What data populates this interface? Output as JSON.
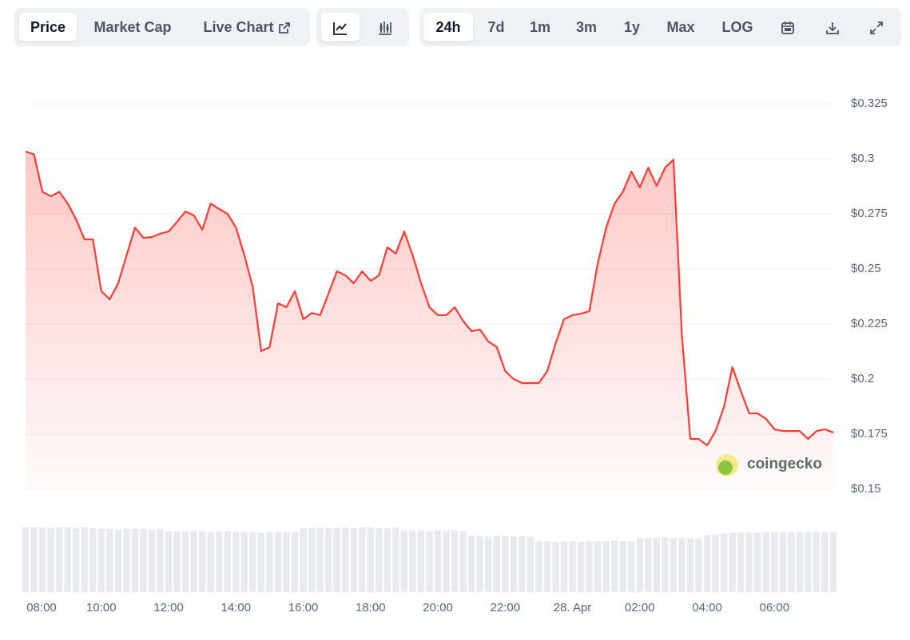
{
  "toolbar": {
    "view_tabs": [
      "Price",
      "Market Cap",
      "Live Chart"
    ],
    "range_tabs": [
      "24h",
      "7d",
      "1m",
      "3m",
      "1y",
      "Max",
      "LOG"
    ]
  },
  "chart_data": {
    "type": "line",
    "color": "#ff3a33",
    "watermark": "coingecko",
    "categories": [
      null,
      "08:00",
      null,
      null,
      null,
      null,
      null,
      null,
      null,
      "10:00",
      null,
      null,
      null,
      null,
      null,
      null,
      null,
      "12:00",
      null,
      null,
      null,
      null,
      null,
      null,
      null,
      "14:00",
      null,
      null,
      null,
      null,
      null,
      null,
      null,
      "16:00",
      null,
      null,
      null,
      null,
      null,
      null,
      null,
      "18:00",
      null,
      null,
      null,
      null,
      null,
      null,
      null,
      "20:00",
      null,
      null,
      null,
      null,
      null,
      null,
      null,
      "22:00",
      null,
      null,
      null,
      null,
      null,
      null,
      null,
      "28. Apr",
      null,
      null,
      null,
      null,
      null,
      null,
      null,
      "02:00",
      null,
      null,
      null,
      null,
      null,
      null,
      null,
      "04:00",
      null,
      null,
      null,
      null,
      null,
      null,
      null,
      "06:00",
      null,
      null,
      null,
      null,
      null,
      null,
      null
    ],
    "values": [
      0.3033,
      0.302,
      0.285,
      0.283,
      0.285,
      0.2797,
      0.2725,
      0.2634,
      0.2634,
      0.2399,
      0.2362,
      0.2435,
      0.2562,
      0.2688,
      0.2641,
      0.2645,
      0.266,
      0.267,
      0.2714,
      0.2761,
      0.2743,
      0.2678,
      0.2797,
      0.2772,
      0.275,
      0.2688,
      0.2562,
      0.2417,
      0.2127,
      0.2145,
      0.2344,
      0.2326,
      0.2399,
      0.2272,
      0.23,
      0.229,
      0.2388,
      0.2489,
      0.2471,
      0.2435,
      0.2489,
      0.2446,
      0.2471,
      0.2598,
      0.257,
      0.267,
      0.2562,
      0.2435,
      0.2326,
      0.229,
      0.229,
      0.2326,
      0.2264,
      0.2217,
      0.2225,
      0.217,
      0.2145,
      0.2036,
      0.2,
      0.1982,
      0.1982,
      0.1982,
      0.2036,
      0.2163,
      0.2272,
      0.229,
      0.2297,
      0.2308,
      0.2525,
      0.2688,
      0.2797,
      0.2851,
      0.2942,
      0.287,
      0.296,
      0.2877,
      0.296,
      0.2996,
      0.2199,
      0.1728,
      0.1728,
      0.1699,
      0.1764,
      0.1873,
      0.2054,
      0.1946,
      0.1844,
      0.1844,
      0.1819,
      0.1772,
      0.1764,
      0.1764,
      0.1764,
      0.1728,
      0.1764,
      0.1772,
      0.1757
    ],
    "volume": [
      84,
      84,
      84,
      83,
      84,
      84,
      83,
      84,
      83,
      82,
      82,
      81,
      82,
      82,
      82,
      81,
      82,
      79,
      79,
      78,
      79,
      79,
      78,
      79,
      79,
      78,
      78,
      78,
      77,
      78,
      78,
      78,
      78,
      83,
      83,
      84,
      83,
      83,
      84,
      83,
      84,
      84,
      83,
      83,
      84,
      80,
      80,
      80,
      79,
      80,
      80,
      80,
      79,
      73,
      73,
      72,
      73,
      73,
      72,
      73,
      72,
      66,
      66,
      65,
      66,
      66,
      65,
      66,
      66,
      66,
      67,
      66,
      66,
      70,
      70,
      70,
      71,
      70,
      70,
      70,
      70,
      74,
      74,
      76,
      77,
      77,
      77,
      77,
      78,
      78,
      78,
      78,
      78,
      78,
      78,
      78,
      78
    ],
    "volume_ylim": [
      0,
      88
    ],
    "ylim": [
      0.15,
      0.325
    ],
    "yticks": [
      {
        "value": 0.15,
        "label": "$0.15"
      },
      {
        "value": 0.175,
        "label": "$0.175"
      },
      {
        "value": 0.2,
        "label": "$0.2"
      },
      {
        "value": 0.225,
        "label": "$0.225"
      },
      {
        "value": 0.25,
        "label": "$0.25"
      },
      {
        "value": 0.275,
        "label": "$0.275"
      },
      {
        "value": 0.3,
        "label": "$0.3"
      },
      {
        "value": 0.325,
        "label": "$0.325"
      }
    ],
    "grid": true
  }
}
